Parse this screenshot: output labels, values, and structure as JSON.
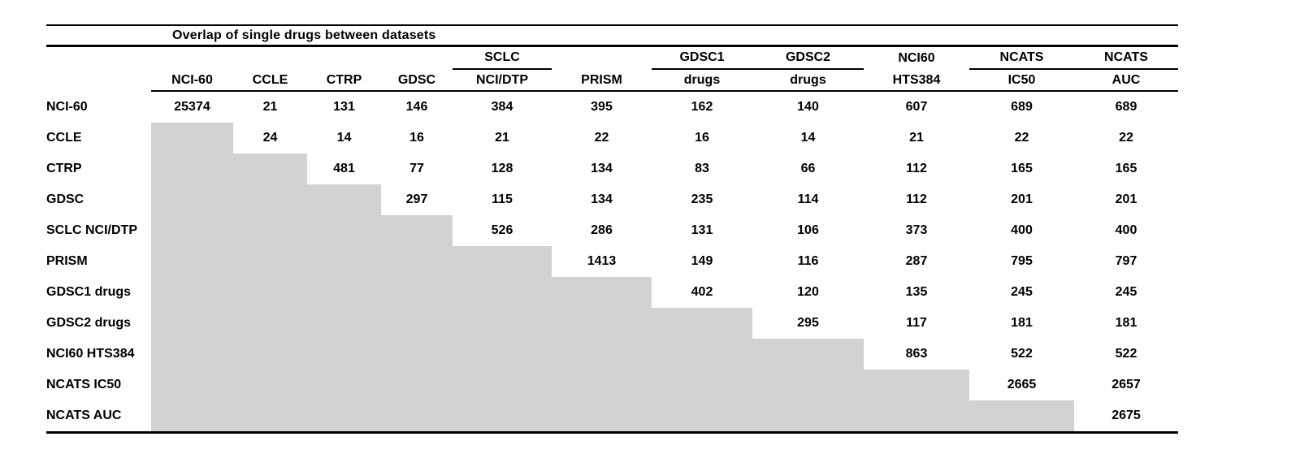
{
  "table": {
    "title": "Overlap of single drugs between datasets",
    "columns": [
      {
        "top": "",
        "sub": "NCI-60",
        "group_underline": false
      },
      {
        "top": "",
        "sub": "CCLE",
        "group_underline": false
      },
      {
        "top": "",
        "sub": "CTRP",
        "group_underline": false
      },
      {
        "top": "",
        "sub": "GDSC",
        "group_underline": false
      },
      {
        "top": "SCLC",
        "sub": "NCI/DTP",
        "group_underline": true
      },
      {
        "top": "",
        "sub": "PRISM",
        "group_underline": false
      },
      {
        "top": "GDSC1",
        "sub": "drugs",
        "group_underline": true
      },
      {
        "top": "GDSC2",
        "sub": "drugs",
        "group_underline": true
      },
      {
        "top": "NCI60",
        "sub": "HTS384",
        "group_underline": false
      },
      {
        "top": "NCATS",
        "sub": "IC50",
        "group_underline": true
      },
      {
        "top": "NCATS",
        "sub": "AUC",
        "group_underline": true
      }
    ],
    "rows": [
      {
        "label": "NCI-60",
        "values": [
          "25374",
          "21",
          "131",
          "146",
          "384",
          "395",
          "162",
          "140",
          "607",
          "689",
          "689"
        ]
      },
      {
        "label": "CCLE",
        "values": [
          null,
          "24",
          "14",
          "16",
          "21",
          "22",
          "16",
          "14",
          "21",
          "22",
          "22"
        ]
      },
      {
        "label": "CTRP",
        "values": [
          null,
          null,
          "481",
          "77",
          "128",
          "134",
          "83",
          "66",
          "112",
          "165",
          "165"
        ]
      },
      {
        "label": "GDSC",
        "values": [
          null,
          null,
          null,
          "297",
          "115",
          "134",
          "235",
          "114",
          "112",
          "201",
          "201"
        ]
      },
      {
        "label": "SCLC NCI/DTP",
        "values": [
          null,
          null,
          null,
          null,
          "526",
          "286",
          "131",
          "106",
          "373",
          "400",
          "400"
        ]
      },
      {
        "label": "PRISM",
        "values": [
          null,
          null,
          null,
          null,
          null,
          "1413",
          "149",
          "116",
          "287",
          "795",
          "797"
        ]
      },
      {
        "label": "GDSC1 drugs",
        "values": [
          null,
          null,
          null,
          null,
          null,
          null,
          "402",
          "120",
          "135",
          "245",
          "245"
        ]
      },
      {
        "label": "GDSC2 drugs",
        "values": [
          null,
          null,
          null,
          null,
          null,
          null,
          null,
          "295",
          "117",
          "181",
          "181"
        ]
      },
      {
        "label": "NCI60 HTS384",
        "values": [
          null,
          null,
          null,
          null,
          null,
          null,
          null,
          null,
          "863",
          "522",
          "522"
        ]
      },
      {
        "label": "NCATS IC50",
        "values": [
          null,
          null,
          null,
          null,
          null,
          null,
          null,
          null,
          null,
          "2665",
          "2657"
        ]
      },
      {
        "label": "NCATS AUC",
        "values": [
          null,
          null,
          null,
          null,
          null,
          null,
          null,
          null,
          null,
          null,
          "2675"
        ]
      }
    ]
  },
  "colors": {
    "background": "#ffffff",
    "text": "#000000",
    "line": "#000000",
    "gray_fill": "#d2d2d2"
  }
}
